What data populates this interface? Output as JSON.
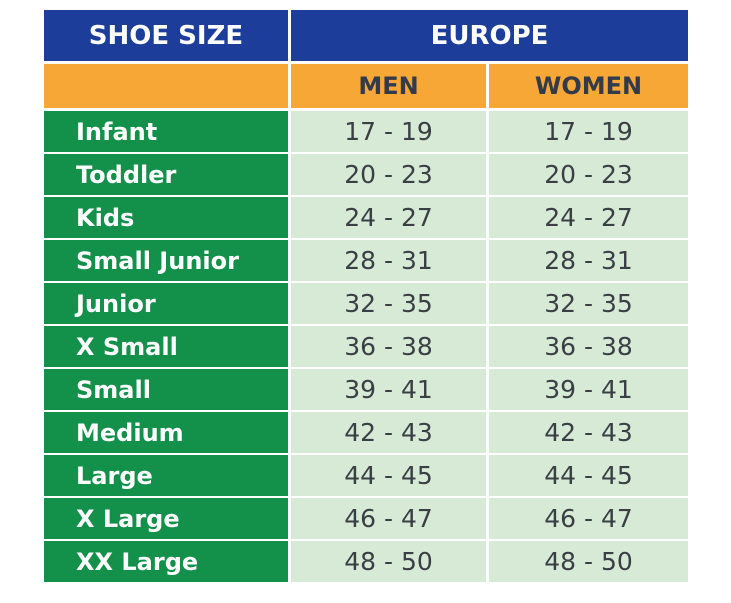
{
  "header": {
    "shoe_size": "SHOE SIZE",
    "region": "EUROPE",
    "men": "MEN",
    "women": "WOMEN"
  },
  "rows": [
    {
      "size": "Infant",
      "men": "17 - 19",
      "women": "17 - 19"
    },
    {
      "size": "Toddler",
      "men": "20 - 23",
      "women": "20 - 23"
    },
    {
      "size": "Kids",
      "men": "24 - 27",
      "women": "24 - 27"
    },
    {
      "size": "Small Junior",
      "men": "28 - 31",
      "women": "28 - 31"
    },
    {
      "size": "Junior",
      "men": "32 - 35",
      "women": "32 - 35"
    },
    {
      "size": "X Small",
      "men": "36 - 38",
      "women": "36 - 38"
    },
    {
      "size": "Small",
      "men": "39 - 41",
      "women": "39 - 41"
    },
    {
      "size": "Medium",
      "men": "42 - 43",
      "women": "42 - 43"
    },
    {
      "size": "Large",
      "men": "44 - 45",
      "women": "44 - 45"
    },
    {
      "size": "X Large",
      "men": "46 - 47",
      "women": "46 - 47"
    },
    {
      "size": "XX Large",
      "men": "48 - 50",
      "women": "48 - 50"
    }
  ],
  "colors": {
    "header_blue": "#1d3d9a",
    "header_orange": "#f7a736",
    "label_green": "#13904a",
    "value_bg": "#d6ead5"
  }
}
